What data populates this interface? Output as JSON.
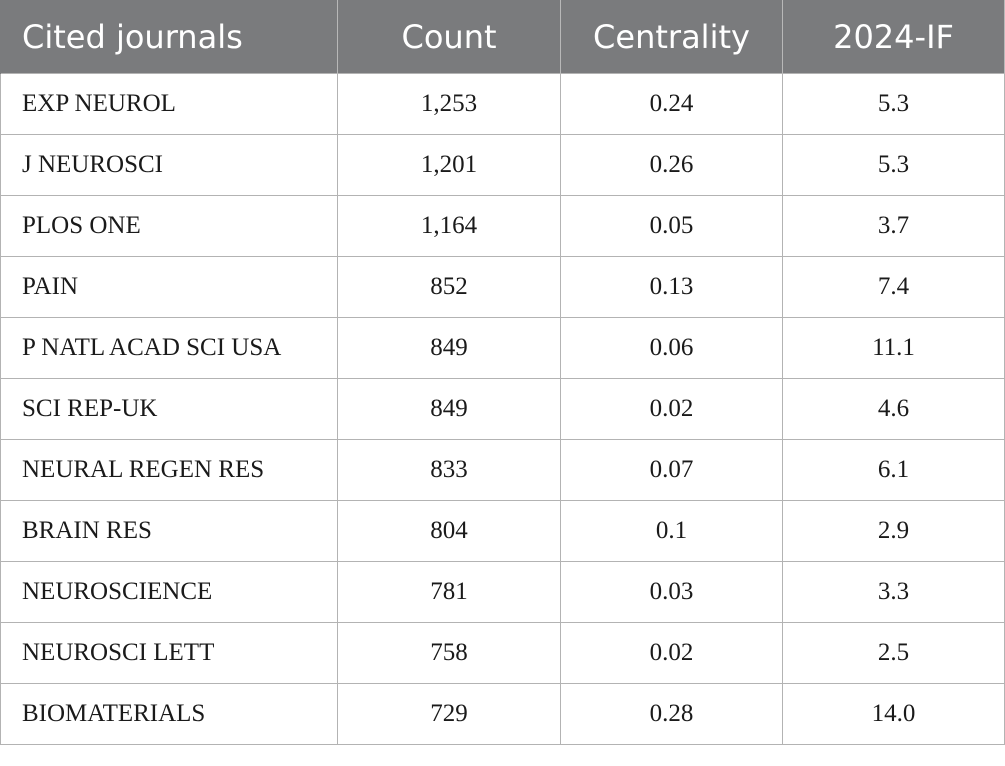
{
  "table": {
    "headers": [
      "Cited journals",
      "Count",
      "Centrality",
      "2024-IF"
    ],
    "rows": [
      [
        "EXP NEUROL",
        "1,253",
        "0.24",
        "5.3"
      ],
      [
        "J NEUROSCI",
        "1,201",
        "0.26",
        "5.3"
      ],
      [
        "PLOS ONE",
        "1,164",
        "0.05",
        "3.7"
      ],
      [
        "PAIN",
        "852",
        "0.13",
        "7.4"
      ],
      [
        "P NATL ACAD SCI USA",
        "849",
        "0.06",
        "11.1"
      ],
      [
        "SCI REP-UK",
        "849",
        "0.02",
        "4.6"
      ],
      [
        "NEURAL REGEN RES",
        "833",
        "0.07",
        "6.1"
      ],
      [
        "BRAIN RES",
        "804",
        "0.1",
        "2.9"
      ],
      [
        "NEUROSCIENCE",
        "781",
        "0.03",
        "3.3"
      ],
      [
        "NEUROSCI LETT",
        "758",
        "0.02",
        "2.5"
      ],
      [
        "BIOMATERIALS",
        "729",
        "0.28",
        "14.0"
      ]
    ],
    "colors": {
      "header_bg": "#7a7b7d",
      "header_text": "#ffffff",
      "border": "#b3b3b3"
    }
  }
}
